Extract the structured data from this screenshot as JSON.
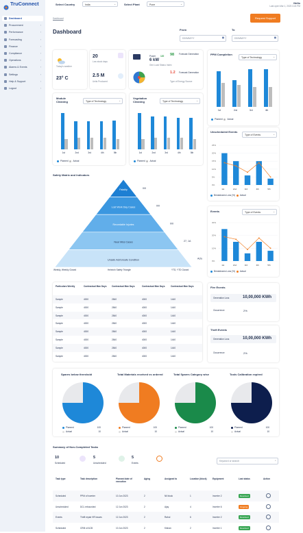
{
  "app": {
    "logo": "TruConnect",
    "user_name": "Hello",
    "user_sub": "Last open Mar 1, 2023 3:24 PM"
  },
  "top": {
    "country_label": "Select Country",
    "country_value": "India",
    "plant_label": "Select Plant",
    "plant_value": "Pune"
  },
  "sidebar": {
    "items": [
      {
        "label": "Dashboard",
        "chev": ""
      },
      {
        "label": "Procurement",
        "chev": "›"
      },
      {
        "label": "Performance",
        "chev": "›"
      },
      {
        "label": "Forecasting",
        "chev": "›"
      },
      {
        "label": "Finance",
        "chev": "›"
      },
      {
        "label": "Compliance",
        "chev": "›"
      },
      {
        "label": "Operations",
        "chev": "›"
      },
      {
        "label": "Alarms & Events",
        "chev": "›"
      },
      {
        "label": "Settings",
        "chev": "›"
      },
      {
        "label": "Help & Support",
        "chev": "›"
      },
      {
        "label": "Logout",
        "chev": "›"
      }
    ]
  },
  "breadcrumb": "Dashboard",
  "request_support": "Request Support",
  "page_title": "Dashboard",
  "from_label": "From",
  "from_placeholder": "DD/MM/YY",
  "to_label": "To",
  "to_placeholder": "DD/MM/YY",
  "weather": {
    "note": "Today's weather",
    "temp": "23° C"
  },
  "kpi": {
    "v1": "20",
    "l1": "Low stock days",
    "v2": "2.5 M",
    "l2": "Units Produced"
  },
  "gen": {
    "v1": "120",
    "l1": "Power",
    "v2": "6 kW",
    "l2": "Grid Generation",
    "v3": "98",
    "l3": "Forecast Generation",
    "v4": "1.2",
    "l4": "Forecast Generation",
    "note1": "Grid Load Status Index",
    "note2": "Type of Energy Source"
  },
  "ppm": {
    "title": "PPM Completion",
    "dropdown": "Type of Technology",
    "legend": [
      "Planned",
      "Actual"
    ],
    "cats": [
      "1st",
      "2nd",
      "3rd",
      "4th"
    ]
  },
  "module": {
    "title": "Module Cleaning",
    "dropdown": "Type of Technology",
    "legend": [
      "Planned",
      "Actual"
    ],
    "cats": [
      "1st",
      "2nd",
      "3rd",
      "4th",
      "5th"
    ]
  },
  "veg": {
    "title": "Vegetation Cleaning",
    "dropdown": "Type of Technology",
    "legend": [
      "Planned",
      "Actual"
    ],
    "cats": [
      "1st",
      "2nd",
      "3rd",
      "4th",
      "5th"
    ]
  },
  "unsched": {
    "title": "Unscheduled Events",
    "dropdown": "Type of Events",
    "legend": [
      "Breakdowns Loss (%)",
      "Actual"
    ],
    "cats": [
      "1st",
      "2nd",
      "3rd",
      "4th",
      "5th"
    ]
  },
  "events2": {
    "title": "Events",
    "dropdown": "Type of Events",
    "legend": [
      "Breakdowns Loss (%)",
      "Actual"
    ],
    "cats": [
      "1st",
      "2nd",
      "3rd",
      "4th",
      "5th"
    ]
  },
  "safety": {
    "title": "Safety Matrix and Indicators",
    "levels": [
      {
        "label": "Fatality",
        "value": "0/0"
      },
      {
        "label": "Lost Work Day Cases",
        "value": "0/0"
      },
      {
        "label": "Recordable Injuries",
        "value": "0/0"
      },
      {
        "label": "Near Miss Cases",
        "value": "27, 1A"
      },
      {
        "label": "Unsafe Act/Unsafe Condition",
        "value": "Actuals"
      }
    ],
    "foot": [
      "Weekly, Weekly Closed",
      "Heinrich Safety Triangle",
      "YTD, YTD Closed"
    ]
  },
  "ptable": {
    "headers": [
      "Particulars Weekly",
      "Contractual Man Days",
      "Contractual Man Days",
      "Contractual Man Days",
      "Contractual Man Days"
    ],
    "rows": [
      [
        "Sample",
        "4000",
        "2840",
        "4000",
        "1440"
      ],
      [
        "Sample",
        "4000",
        "2840",
        "4000",
        "1440"
      ],
      [
        "Sample",
        "4000",
        "2840",
        "4000",
        "1440"
      ],
      [
        "Sample",
        "4000",
        "2840",
        "4000",
        "1440"
      ],
      [
        "Sample",
        "4000",
        "2840",
        "4000",
        "1440"
      ],
      [
        "Sample",
        "4000",
        "2840",
        "4000",
        "1440"
      ],
      [
        "Sample",
        "4000",
        "2840",
        "4000",
        "1440"
      ],
      [
        "Sample",
        "4000",
        "2840",
        "4000",
        "1440"
      ]
    ]
  },
  "fire": {
    "title": "Fire Events",
    "l1": "Generation Loss",
    "v1": "10,00,000 KWh",
    "l2": "Occurrence",
    "v2": "2%"
  },
  "theft": {
    "title": "Theft Events",
    "l1": "Generation Loss",
    "v1": "10,00,000 KWh",
    "l2": "Occurrence",
    "v2": "2%"
  },
  "pies": [
    {
      "title": "Spares below threshold",
      "color": "#1e88d8",
      "planned": "100",
      "actual": "10",
      "fraction": 0.75
    },
    {
      "title": "Total Materials received vs ordered",
      "color": "#f07c21",
      "planned": "100",
      "actual": "10",
      "fraction": 0.75
    },
    {
      "title": "Total Spares Category wise",
      "color": "#1a8a4a",
      "planned": "100",
      "actual": "10",
      "fraction": 0.75
    },
    {
      "title": "Tools Calibration expired",
      "color": "#0d1e4d",
      "planned": "100",
      "actual": "10",
      "fraction": 0.75
    }
  ],
  "pie_legend": [
    "Planned",
    "Actual"
  ],
  "summary": {
    "title": "Summary of Non-Completed Tasks",
    "c1": "10",
    "l1": "Scheduled",
    "c2": "5",
    "l2": "Unscheduled",
    "c3": "5",
    "l3": "Events",
    "search_placeholder": "Keyword or search"
  },
  "tasks": {
    "headers": [
      "Task type",
      "Task description",
      "Planned date of execution",
      "Aging",
      "Assigned to",
      "Location (block)",
      "Equipment",
      "Last status",
      "Action"
    ],
    "rows": [
      [
        "Scheduled",
        "PPM of inverter",
        "10 Jun 2023",
        "2",
        "Nil block",
        "1",
        "Inverter 2",
        "Resolved"
      ],
      [
        "Unscheduled",
        "DCL rebounded",
        "12 Jun 2023",
        "2",
        "Ajay",
        "4",
        "Inverter 6",
        "Ongoing"
      ],
      [
        "Events",
        "Thrift repair HR issues",
        "12 Jun 2023",
        "2",
        "Rahul",
        "6",
        "Inverter 2",
        "Resolved"
      ],
      [
        "Scheduled",
        "CRM of ACB",
        "10 Jun 2023",
        "2",
        "Kishan",
        "2",
        "Inverter 1",
        "Resolved"
      ]
    ]
  }
}
